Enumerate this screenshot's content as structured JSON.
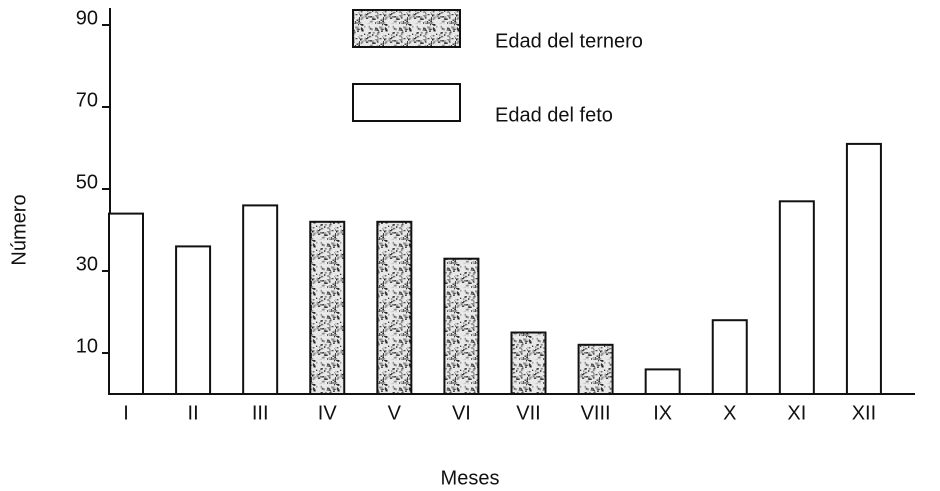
{
  "chart_data": {
    "type": "bar",
    "categories": [
      "I",
      "II",
      "III",
      "IV",
      "V",
      "VI",
      "VII",
      "VIII",
      "IX",
      "X",
      "XI",
      "XII"
    ],
    "series": [
      {
        "name": "Edad del ternero",
        "color": "#8a8a8a",
        "values": [
          null,
          null,
          null,
          42,
          42,
          33,
          15,
          12,
          null,
          null,
          null,
          null
        ]
      },
      {
        "name": "Edad del feto",
        "color": "#ffffff",
        "values": [
          44,
          36,
          46,
          null,
          null,
          null,
          null,
          null,
          6,
          18,
          47,
          61
        ]
      }
    ],
    "xlabel": "Meses",
    "ylabel": "Número",
    "ylim": [
      0,
      95
    ],
    "yticks": [
      10,
      30,
      50,
      70,
      90
    ],
    "grid": false,
    "legend": "top"
  }
}
